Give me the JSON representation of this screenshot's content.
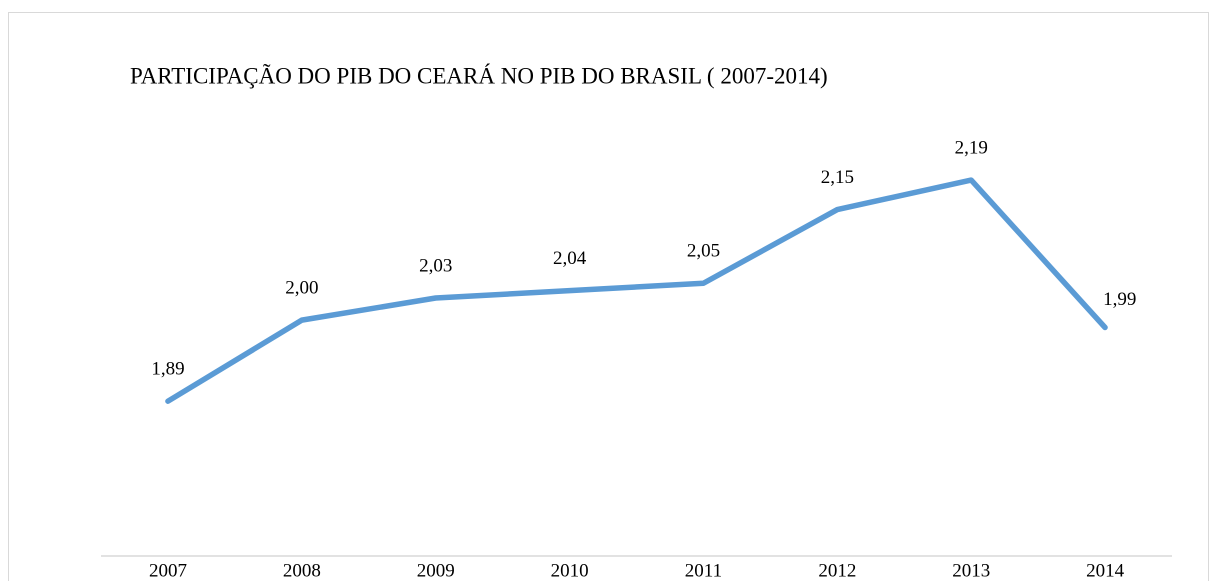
{
  "chart_data": {
    "type": "line",
    "title": "PARTICIPAÇÃO DO PIB DO CEARÁ NO PIB DO BRASIL ( 2007-2014)",
    "categories": [
      "2007",
      "2008",
      "2009",
      "2010",
      "2011",
      "2012",
      "2013",
      "2014"
    ],
    "values": [
      1.89,
      2.0,
      2.03,
      2.04,
      2.05,
      2.15,
      2.19,
      1.99
    ],
    "value_labels": [
      "1,89",
      "2,00",
      "2,03",
      "2,04",
      "2,05",
      "2,15",
      "2,19",
      "1,99"
    ],
    "color": "#5b9bd5",
    "ylim": [
      1.68,
      2.3
    ],
    "grid": false
  }
}
